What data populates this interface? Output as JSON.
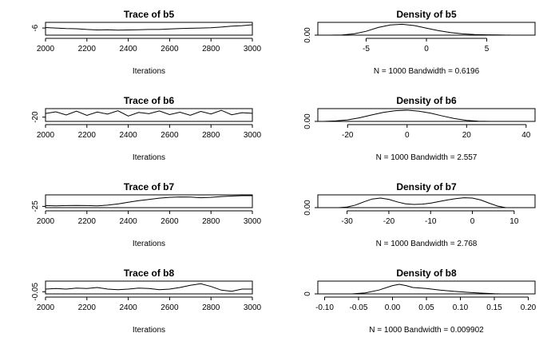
{
  "chart_data": [
    {
      "type": "line",
      "title": "Trace of b5",
      "xlabel": "Iterations",
      "ylabel": "",
      "xlim": [
        2000,
        3000
      ],
      "ylim": [
        -7.5,
        -4.8
      ],
      "xticks": [
        2000,
        2200,
        2400,
        2600,
        2800,
        3000
      ],
      "yticks": [
        -6
      ],
      "x": [
        2000,
        2050,
        2100,
        2150,
        2200,
        2250,
        2300,
        2350,
        2400,
        2450,
        2500,
        2550,
        2600,
        2650,
        2700,
        2750,
        2800,
        2850,
        2900,
        2950,
        3000
      ],
      "values": [
        -5.9,
        -6.0,
        -6.1,
        -6.15,
        -6.3,
        -6.4,
        -6.35,
        -6.45,
        -6.4,
        -6.35,
        -6.3,
        -6.3,
        -6.2,
        -6.1,
        -6.05,
        -6.0,
        -5.95,
        -5.8,
        -5.6,
        -5.5,
        -5.3
      ]
    },
    {
      "type": "line",
      "title": "Density of b5",
      "xlabel": "N = 1000   Bandwidth = 0.6196",
      "ylabel": "",
      "xlim": [
        -9,
        9
      ],
      "ylim": [
        0,
        0.2
      ],
      "xticks": [
        -5,
        0,
        5
      ],
      "yticks": [
        0.0
      ],
      "ytick_labels": [
        "0.00"
      ],
      "x": [
        -8,
        -7,
        -6,
        -5,
        -4,
        -3,
        -2,
        -1,
        0,
        1,
        2,
        3,
        4,
        5,
        6,
        7,
        8
      ],
      "values": [
        0.0,
        0.003,
        0.02,
        0.06,
        0.12,
        0.16,
        0.17,
        0.15,
        0.11,
        0.07,
        0.04,
        0.02,
        0.01,
        0.005,
        0.002,
        0.0,
        0.0
      ]
    },
    {
      "type": "line",
      "title": "Trace of b6",
      "xlabel": "Iterations",
      "ylabel": "",
      "xlim": [
        2000,
        3000
      ],
      "ylim": [
        -40,
        20
      ],
      "xticks": [
        2000,
        2200,
        2400,
        2600,
        2800,
        3000
      ],
      "yticks": [
        -20
      ],
      "x": [
        2000,
        2050,
        2100,
        2150,
        2200,
        2250,
        2300,
        2350,
        2400,
        2450,
        2500,
        2550,
        2600,
        2650,
        2700,
        2750,
        2800,
        2850,
        2900,
        2950,
        3000
      ],
      "values": [
        -3,
        5,
        -10,
        8,
        -12,
        4,
        -6,
        10,
        -15,
        2,
        -4,
        9,
        -8,
        3,
        -11,
        7,
        -5,
        12,
        -9,
        1,
        -2
      ]
    },
    {
      "type": "line",
      "title": "Density of b6",
      "xlabel": "N = 1000   Bandwidth = 2.557",
      "ylabel": "",
      "xlim": [
        -30,
        43
      ],
      "ylim": [
        0,
        0.05
      ],
      "xticks": [
        -20,
        0,
        20,
        40
      ],
      "yticks": [
        0.0
      ],
      "ytick_labels": [
        "0.00"
      ],
      "x": [
        -28,
        -24,
        -20,
        -16,
        -12,
        -8,
        -4,
        0,
        4,
        8,
        12,
        16,
        20,
        24,
        28
      ],
      "values": [
        0.0,
        0.002,
        0.006,
        0.014,
        0.025,
        0.035,
        0.042,
        0.044,
        0.04,
        0.032,
        0.021,
        0.011,
        0.004,
        0.001,
        0.0
      ]
    },
    {
      "type": "line",
      "title": "Trace of b7",
      "xlabel": "Iterations",
      "ylabel": "",
      "xlim": [
        2000,
        3000
      ],
      "ylim": [
        -28,
        3
      ],
      "xticks": [
        2000,
        2200,
        2400,
        2600,
        2800,
        3000
      ],
      "yticks": [
        -25
      ],
      "x": [
        2000,
        2050,
        2100,
        2150,
        2200,
        2250,
        2300,
        2350,
        2400,
        2450,
        2500,
        2550,
        2600,
        2650,
        2700,
        2750,
        2800,
        2850,
        2900,
        2950,
        3000
      ],
      "values": [
        -23,
        -23.5,
        -23,
        -22.5,
        -23,
        -23.5,
        -22,
        -19,
        -15,
        -11,
        -8,
        -5,
        -3,
        -2,
        -2.5,
        -4,
        -3,
        -1,
        0,
        1,
        1
      ]
    },
    {
      "type": "line",
      "title": "Density of b7",
      "xlabel": "N = 1000   Bandwidth = 2.768",
      "ylabel": "",
      "xlim": [
        -37,
        15
      ],
      "ylim": [
        0,
        0.04
      ],
      "xticks": [
        -30,
        -20,
        -10,
        0,
        10
      ],
      "yticks": [
        0.0
      ],
      "ytick_labels": [
        "0.00"
      ],
      "x": [
        -32,
        -30,
        -28,
        -26,
        -24,
        -22,
        -20,
        -18,
        -16,
        -14,
        -12,
        -10,
        -8,
        -6,
        -4,
        -2,
        0,
        2,
        4,
        6,
        8
      ],
      "values": [
        0.0,
        0.002,
        0.008,
        0.018,
        0.027,
        0.03,
        0.026,
        0.018,
        0.012,
        0.01,
        0.011,
        0.014,
        0.019,
        0.024,
        0.028,
        0.031,
        0.03,
        0.024,
        0.014,
        0.005,
        0.0
      ]
    },
    {
      "type": "line",
      "title": "Trace of b8",
      "xlabel": "Iterations",
      "ylabel": "",
      "xlim": [
        2000,
        3000
      ],
      "ylim": [
        -0.09,
        0.15
      ],
      "xticks": [
        2000,
        2200,
        2400,
        2600,
        2800,
        3000
      ],
      "yticks": [
        -0.05
      ],
      "x": [
        2000,
        2050,
        2100,
        2150,
        2200,
        2250,
        2300,
        2350,
        2400,
        2450,
        2500,
        2550,
        2600,
        2650,
        2700,
        2750,
        2800,
        2850,
        2900,
        2950,
        3000
      ],
      "values": [
        0.0,
        0.01,
        0.0,
        0.02,
        0.01,
        0.03,
        0.0,
        -0.01,
        0.0,
        0.02,
        0.01,
        -0.01,
        0.0,
        0.03,
        0.07,
        0.1,
        0.05,
        -0.02,
        -0.04,
        0.0,
        0.0
      ]
    },
    {
      "type": "line",
      "title": "Density of b8",
      "xlabel": "N = 1000   Bandwidth = 0.009902",
      "ylabel": "",
      "xlim": [
        -0.11,
        0.21
      ],
      "ylim": [
        0,
        20
      ],
      "xticks": [
        -0.1,
        -0.05,
        0.0,
        0.05,
        0.1,
        0.15,
        0.2
      ],
      "xtick_labels": [
        "-0.10",
        "-0.05",
        "0.00",
        "0.05",
        "0.10",
        "0.15",
        "0.20"
      ],
      "yticks": [
        0
      ],
      "ytick_labels": [
        "0"
      ],
      "x": [
        -0.06,
        -0.04,
        -0.02,
        0.0,
        0.01,
        0.02,
        0.03,
        0.05,
        0.07,
        0.09,
        0.11,
        0.13,
        0.15,
        0.16
      ],
      "values": [
        0.0,
        1.5,
        6,
        13,
        15,
        13,
        10,
        8.5,
        6,
        4,
        2.5,
        1.2,
        0.3,
        0.0
      ]
    }
  ]
}
